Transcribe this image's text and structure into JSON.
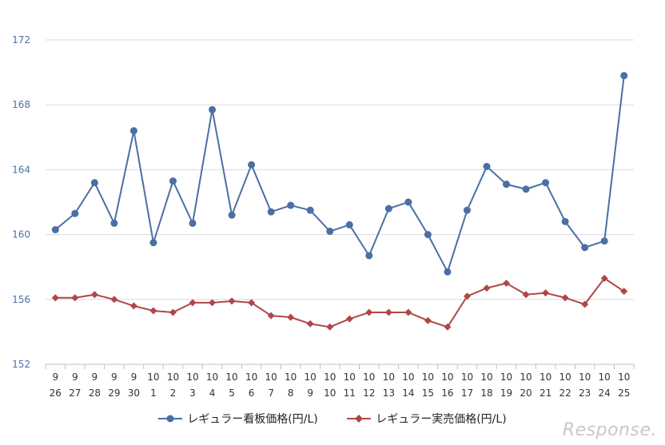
{
  "chart_data": {
    "type": "line",
    "ylim": [
      152,
      172
    ],
    "yticks": [
      "152",
      "156",
      "160",
      "164",
      "168",
      "172"
    ],
    "categories": [
      [
        "9",
        "26"
      ],
      [
        "9",
        "27"
      ],
      [
        "9",
        "28"
      ],
      [
        "9",
        "29"
      ],
      [
        "9",
        "30"
      ],
      [
        "10",
        "1"
      ],
      [
        "10",
        "2"
      ],
      [
        "10",
        "3"
      ],
      [
        "10",
        "4"
      ],
      [
        "10",
        "5"
      ],
      [
        "10",
        "6"
      ],
      [
        "10",
        "7"
      ],
      [
        "10",
        "8"
      ],
      [
        "10",
        "9"
      ],
      [
        "10",
        "10"
      ],
      [
        "10",
        "11"
      ],
      [
        "10",
        "12"
      ],
      [
        "10",
        "13"
      ],
      [
        "10",
        "14"
      ],
      [
        "10",
        "15"
      ],
      [
        "10",
        "16"
      ],
      [
        "10",
        "17"
      ],
      [
        "10",
        "18"
      ],
      [
        "10",
        "19"
      ],
      [
        "10",
        "20"
      ],
      [
        "10",
        "21"
      ],
      [
        "10",
        "22"
      ],
      [
        "10",
        "23"
      ],
      [
        "10",
        "24"
      ],
      [
        "10",
        "25"
      ]
    ],
    "grid": true,
    "legend_position": "bottom",
    "series": [
      {
        "name": "レギュラー看板価格(円/L)",
        "color": "#4a6fa5",
        "marker": "circle",
        "values": [
          160.3,
          161.3,
          163.2,
          160.7,
          166.4,
          159.5,
          163.3,
          160.7,
          167.7,
          161.2,
          164.3,
          161.4,
          161.8,
          161.5,
          160.2,
          160.6,
          158.7,
          161.6,
          162.0,
          160.0,
          157.7,
          161.5,
          164.2,
          163.1,
          162.8,
          163.2,
          160.8,
          159.2,
          159.6,
          169.8
        ]
      },
      {
        "name": "レギュラー実売価格(円/L)",
        "color": "#b04646",
        "marker": "diamond",
        "values": [
          156.1,
          156.1,
          156.3,
          156.0,
          155.6,
          155.3,
          155.2,
          155.8,
          155.8,
          155.9,
          155.8,
          155.0,
          154.9,
          154.5,
          154.3,
          154.8,
          155.2,
          155.2,
          155.2,
          154.7,
          154.3,
          156.2,
          156.7,
          157.0,
          156.3,
          156.4,
          156.1,
          155.7,
          157.3,
          156.5
        ]
      }
    ]
  },
  "watermark": "Response."
}
